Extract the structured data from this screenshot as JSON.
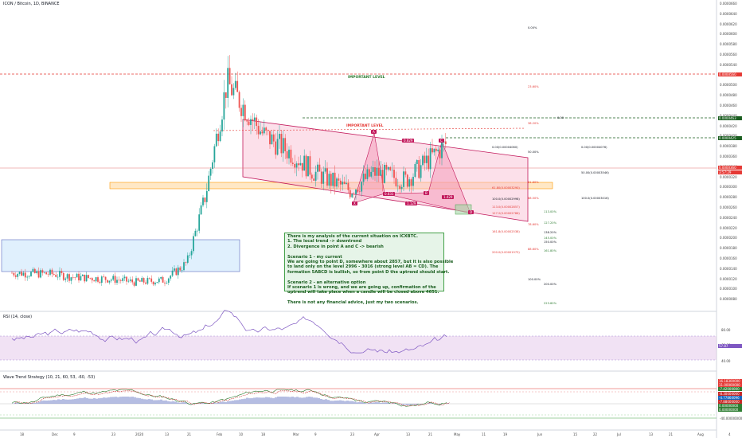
{
  "title": "ICON / Bitcoin, 1D, BINANCE",
  "important_level_1": "IMPORTANT LEVEL",
  "important_level_2": "IMPORTANT LEVEL",
  "note_lines": [
    "There is my analysis of the current situation on ICXBTC.",
    "1. The local trend -> downtrend",
    "2. Divergence in point A and C -> bearish",
    "",
    "Scenario 1 - my current",
    "We are going to point D, somewhere about 2857, but it is also possible",
    "to land only on the level 2996 - 3016 (strong level AB = CD). The",
    "formation 5ABCD is bullish, so from point D the uptrend should start.",
    "",
    "Scenario 2 - an alternative option",
    "If scenario 1 is wrong, and we are going up, confirmation of the",
    "uptrend will take place when a candle will be closed above 4651.",
    "",
    "There is not any financial advice, just my two scenarios."
  ],
  "pattern_points": {
    "X": "X",
    "A": "A",
    "B": "B",
    "C": "C",
    "D": "D"
  },
  "pattern_ratios": {
    "xa_b": "0.833",
    "ab_c": "0.829",
    "bc_d": "1.129",
    "cd": "1.429"
  },
  "fib_labels_right": [
    "0.00%",
    "23.60%",
    "38.20%",
    "50.00%",
    "61.80%",
    "68.50%",
    "78.60%",
    "88.60%",
    "100.00%",
    "113.00%",
    "127.20%",
    "138.20%",
    "145.00%",
    "150.00%",
    "161.80%",
    "200.00%",
    "223.60%"
  ],
  "fib_labels_mid": [
    "0.00(0.00004060)",
    "61.80(0.00003290)",
    "100.0(0.00002998)",
    "113.0(0.00002857)",
    "127.2(0.00002786)",
    "161.8(0.00002538)",
    "200.0(0.00001973)"
  ],
  "fib_labels_far": [
    "0.00",
    "0.00(0.00004076)",
    "50.00(0.00003546)",
    "100.0(0.00003016)"
  ],
  "price_axis": {
    "ticks": [
      "0.0000660",
      "0.0000640",
      "0.0000620",
      "0.0000600",
      "0.0000580",
      "0.0000560",
      "0.0000540",
      "0.0000520",
      "0.0000500",
      "0.0000480",
      "0.0000460",
      "0.0000440",
      "0.0000420",
      "0.0000400",
      "0.0000380",
      "0.0000360",
      "0.0000340",
      "0.0000320",
      "0.0000300",
      "0.0000280",
      "0.0000260",
      "0.0000240",
      "0.0000220",
      "0.0000200",
      "0.0000180",
      "0.0000160",
      "0.0000140",
      "0.0000120",
      "0.0000100",
      "0.0000080"
    ],
    "badges": [
      {
        "text": "0.0000560",
        "color": "#e53935"
      },
      {
        "text": "0.0000463",
        "color": "#1b5e20"
      },
      {
        "text": "0.0000425",
        "color": "#1b5e20"
      },
      {
        "text": "0.0000360",
        "color": "#e53935"
      },
      {
        "text": "3:57:29",
        "color": "#e53935"
      }
    ]
  },
  "time_axis": [
    "18",
    "Dec",
    "9",
    "23",
    "2020",
    "13",
    "21",
    "Feb",
    "10",
    "18",
    "Mar",
    "9",
    "23",
    "Apr",
    "13",
    "21",
    "May",
    "11",
    "19",
    "Jun",
    "15",
    "22",
    "Jul",
    "13",
    "21",
    "Aug",
    "4"
  ],
  "rsi": {
    "title": "RSI (14, close)",
    "ticks": [
      "80.00",
      "60.00",
      "40.00"
    ],
    "badge": "57.87"
  },
  "wavetrend": {
    "title": "Wave Trend Strategy (10, 21, 60, 53, -60, -53)",
    "ticks": [
      "0.00000000",
      "-40.00000000"
    ],
    "badges": [
      "16.18300000",
      "11.00000000",
      "-7.42000000",
      "-8.30000000",
      "-4.77860096",
      "-7.88000000",
      "0.00000000",
      "0.00000000"
    ]
  },
  "chart_data": {
    "type": "line",
    "title": "ICON / Bitcoin, 1D, BINANCE",
    "xlabel": "",
    "ylabel": "",
    "ylim": [
      8e-06,
      6.8e-05
    ],
    "x": [
      "Nov-18",
      "Dec",
      "Dec-9",
      "Dec-23",
      "2020",
      "Jan-13",
      "Jan-21",
      "Feb",
      "Feb-10",
      "Feb-18",
      "Mar",
      "Mar-9",
      "Mar-23",
      "Apr",
      "Apr-13",
      "Apr-21"
    ],
    "series": [
      {
        "values": [
          1.5e-05,
          1.48e-05,
          1.42e-05,
          1.38e-05,
          1.32e-05,
          1.36e-05,
          1.7e-05,
          3e-05,
          5.2e-05,
          4.2e-05,
          3.8e-05,
          3.45e-05,
          3.1e-05,
          3.45e-05,
          3.3e-05,
          4e-05
        ]
      }
    ]
  }
}
